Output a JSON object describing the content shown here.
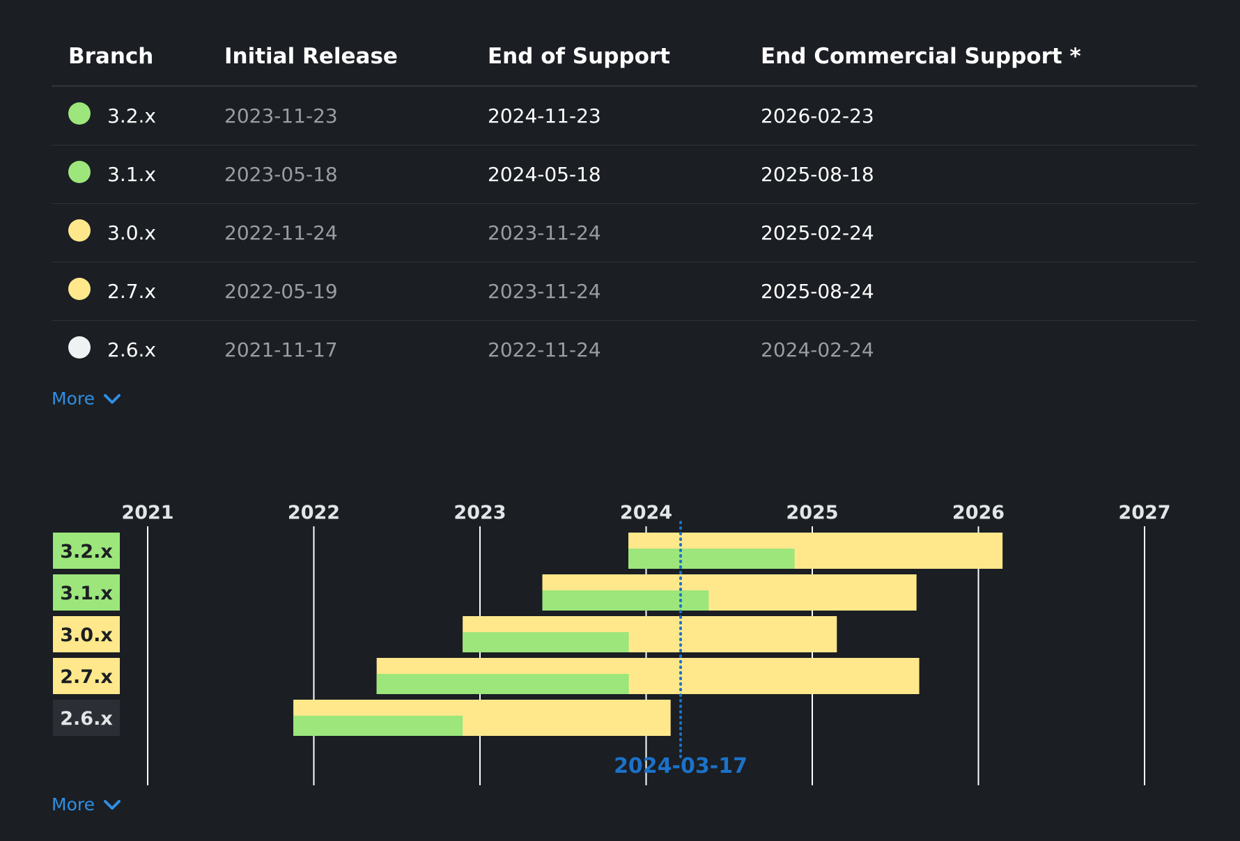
{
  "table": {
    "headers": [
      "Branch",
      "Initial Release",
      "End of Support",
      "End Commercial Support *"
    ],
    "rows": [
      {
        "branch": "3.2.x",
        "status_color": "#9ce67c",
        "initial": "2023-11-23",
        "eos": "2024-11-23",
        "ecs": "2026-02-23",
        "initial_dim": true,
        "eos_dim": false,
        "ecs_dim": false
      },
      {
        "branch": "3.1.x",
        "status_color": "#9ce67c",
        "initial": "2023-05-18",
        "eos": "2024-05-18",
        "ecs": "2025-08-18",
        "initial_dim": true,
        "eos_dim": false,
        "ecs_dim": false
      },
      {
        "branch": "3.0.x",
        "status_color": "#ffe88b",
        "initial": "2022-11-24",
        "eos": "2023-11-24",
        "ecs": "2025-02-24",
        "initial_dim": true,
        "eos_dim": true,
        "ecs_dim": false
      },
      {
        "branch": "2.7.x",
        "status_color": "#ffe88b",
        "initial": "2022-05-19",
        "eos": "2023-11-24",
        "ecs": "2025-08-24",
        "initial_dim": true,
        "eos_dim": true,
        "ecs_dim": false
      },
      {
        "branch": "2.6.x",
        "status_color": "#eef2f3",
        "initial": "2021-11-17",
        "eos": "2022-11-24",
        "ecs": "2024-02-24",
        "initial_dim": true,
        "eos_dim": true,
        "ecs_dim": true
      }
    ]
  },
  "more_label_table": "More",
  "more_label_chart": "More",
  "chart_data": {
    "type": "gantt",
    "years": [
      "2021",
      "2022",
      "2023",
      "2024",
      "2025",
      "2026",
      "2027"
    ],
    "today": "2024-03-17",
    "colors": {
      "oss": "#9ce67c",
      "commercial": "#ffe88b",
      "line": "#1b72c9",
      "grid": "#ffffff"
    },
    "rows": [
      {
        "branch": "3.2.x",
        "start": "2023-11-23",
        "oss_end": "2024-11-23",
        "commercial_end": "2026-02-23",
        "label_bg": "#9ce67c",
        "label_fg": "#1b1e23"
      },
      {
        "branch": "3.1.x",
        "start": "2023-05-18",
        "oss_end": "2024-05-18",
        "commercial_end": "2025-08-18",
        "label_bg": "#9ce67c",
        "label_fg": "#1b1e23"
      },
      {
        "branch": "3.0.x",
        "start": "2022-11-24",
        "oss_end": "2023-11-24",
        "commercial_end": "2025-02-24",
        "label_bg": "#ffe88b",
        "label_fg": "#1b1e23"
      },
      {
        "branch": "2.7.x",
        "start": "2022-05-19",
        "oss_end": "2023-11-24",
        "commercial_end": "2025-08-24",
        "label_bg": "#ffe88b",
        "label_fg": "#1b1e23"
      },
      {
        "branch": "2.6.x",
        "start": "2021-11-17",
        "oss_end": "2022-11-24",
        "commercial_end": "2024-02-24",
        "label_bg": "#2b2f35",
        "label_fg": "#e3e5e7"
      }
    ]
  }
}
